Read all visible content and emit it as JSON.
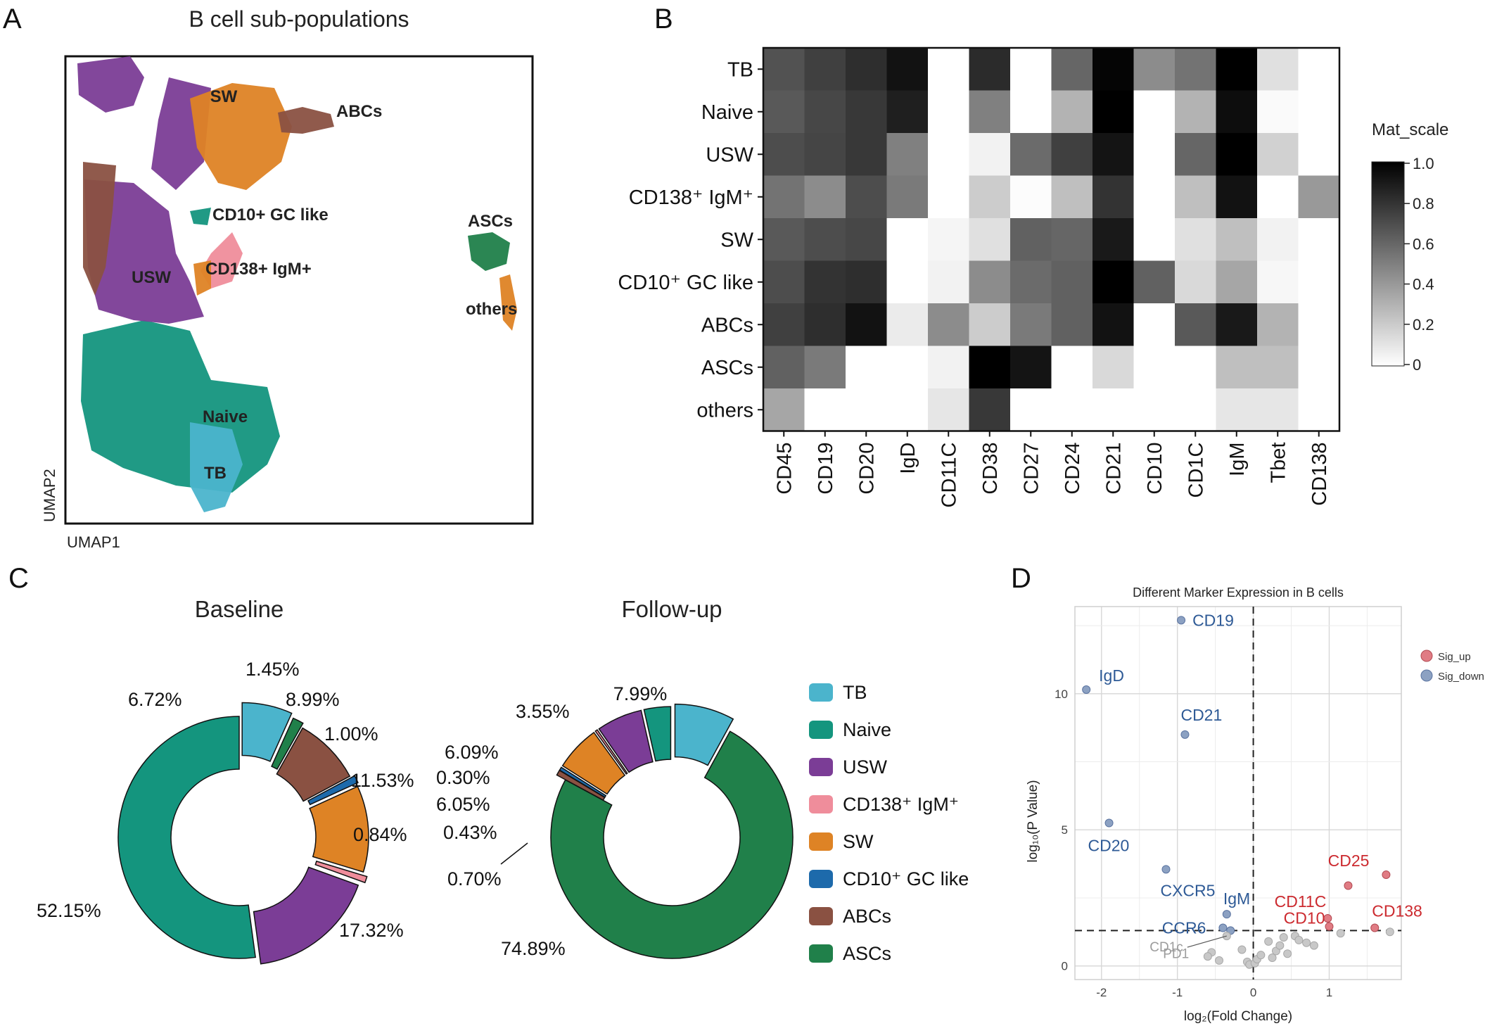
{
  "panels": {
    "A": {
      "letter": "A",
      "title": "B cell sub-populations",
      "xlabel": "UMAP1",
      "ylabel": "UMAP2",
      "cluster_labels": [
        "SW",
        "ABCs",
        "CD10+ GC like",
        "USW",
        "CD138+ IgM+",
        "Naive",
        "TB",
        "ASCs",
        "others"
      ]
    },
    "B": {
      "letter": "B"
    },
    "C": {
      "letter": "C"
    },
    "D": {
      "letter": "D"
    }
  },
  "colors": {
    "TB": "#4bb4cc",
    "Naive": "#14957e",
    "USW": "#7b3d96",
    "CD138": "#ef8d9b",
    "SW": "#de8325",
    "CD10": "#1d6aab",
    "ABCs": "#8a5142",
    "ASCs": "#20804a",
    "sig_up": "#cc2a2f",
    "sig_down": "#2e5a96",
    "ns": "#9c9c9c",
    "pt_up": "#e07c84",
    "pt_down": "#8ca1c2",
    "pt_ns": "#c8c8c8"
  },
  "chart_data": [
    {
      "panel": "B",
      "type": "heatmap",
      "rows": [
        "TB",
        "Naive",
        "USW",
        "CD138⁺ IgM⁺",
        "SW",
        "CD10⁺ GC like",
        "ABCs",
        "ASCs",
        "others"
      ],
      "columns": [
        "CD45",
        "CD19",
        "CD20",
        "IgD",
        "CD11C",
        "CD38",
        "CD27",
        "CD24",
        "CD21",
        "CD10",
        "CD1C",
        "IgM",
        "Tbet",
        "CD138"
      ],
      "values": [
        [
          0.68,
          0.75,
          0.82,
          0.93,
          0.0,
          0.83,
          0.0,
          0.6,
          0.98,
          0.45,
          0.55,
          1.0,
          0.12,
          0.0
        ],
        [
          0.65,
          0.72,
          0.78,
          0.88,
          0.0,
          0.5,
          0.0,
          0.3,
          1.0,
          0.0,
          0.3,
          0.95,
          0.02,
          0.0
        ],
        [
          0.7,
          0.73,
          0.78,
          0.5,
          0.0,
          0.05,
          0.58,
          0.75,
          0.92,
          0.0,
          0.6,
          1.0,
          0.18,
          0.0
        ],
        [
          0.55,
          0.45,
          0.7,
          0.52,
          0.0,
          0.2,
          0.01,
          0.25,
          0.8,
          0.0,
          0.25,
          0.93,
          0.0,
          0.4
        ],
        [
          0.65,
          0.7,
          0.72,
          0.0,
          0.04,
          0.12,
          0.62,
          0.6,
          0.9,
          0.0,
          0.12,
          0.25,
          0.05,
          0.0
        ],
        [
          0.7,
          0.8,
          0.82,
          0.0,
          0.05,
          0.45,
          0.58,
          0.62,
          1.0,
          0.62,
          0.15,
          0.35,
          0.03,
          0.0
        ],
        [
          0.75,
          0.82,
          0.93,
          0.08,
          0.45,
          0.2,
          0.52,
          0.62,
          0.93,
          0.0,
          0.65,
          0.9,
          0.3,
          0.0
        ],
        [
          0.62,
          0.52,
          0.0,
          0.0,
          0.05,
          1.0,
          0.92,
          0.0,
          0.15,
          0.0,
          0.0,
          0.25,
          0.25,
          0.0
        ],
        [
          0.35,
          0.0,
          0.0,
          0.0,
          0.1,
          0.78,
          0.0,
          0.0,
          0.0,
          0.0,
          0.0,
          0.1,
          0.1,
          0.0
        ]
      ],
      "legend_title": "Mat_scale",
      "scale_ticks": [
        "1.0",
        "0.8",
        "0.6",
        "0.4",
        "0.2",
        "0"
      ],
      "range": [
        0,
        1
      ]
    },
    {
      "panel": "C",
      "type": "pie",
      "title": "Baseline",
      "slices": [
        {
          "category": "TB",
          "value": 6.72,
          "label": "6.72%"
        },
        {
          "category": "ASCs",
          "value": 1.45,
          "label": "1.45%"
        },
        {
          "category": "ABCs",
          "value": 8.99,
          "label": "8.99%"
        },
        {
          "category": "CD10",
          "value": 1.0,
          "label": "1.00%"
        },
        {
          "category": "SW",
          "value": 11.53,
          "label": "11.53%"
        },
        {
          "category": "CD138",
          "value": 0.84,
          "label": "0.84%"
        },
        {
          "category": "USW",
          "value": 17.32,
          "label": "17.32%"
        },
        {
          "category": "Naive",
          "value": 52.15,
          "label": "52.15%"
        }
      ]
    },
    {
      "panel": "C",
      "type": "pie",
      "title": "Follow-up",
      "slices": [
        {
          "category": "TB",
          "value": 7.99,
          "label": "7.99%"
        },
        {
          "category": "ASCs",
          "value": 74.89,
          "label": "74.89%"
        },
        {
          "category": "ABCs",
          "value": 0.7,
          "label": "0.70%"
        },
        {
          "category": "CD10",
          "value": 0.43,
          "label": "0.43%"
        },
        {
          "category": "SW",
          "value": 6.05,
          "label": "6.05%"
        },
        {
          "category": "CD138",
          "value": 0.3,
          "label": "0.30%"
        },
        {
          "category": "USW",
          "value": 6.09,
          "label": "6.09%"
        },
        {
          "category": "Naive",
          "value": 3.55,
          "label": "3.55%"
        }
      ],
      "legend": [
        {
          "category": "TB",
          "label": "TB"
        },
        {
          "category": "Naive",
          "label": "Naive"
        },
        {
          "category": "USW",
          "label": "USW"
        },
        {
          "category": "CD138",
          "label": "CD138⁺ IgM⁺"
        },
        {
          "category": "SW",
          "label": "SW"
        },
        {
          "category": "CD10",
          "label": "CD10⁺ GC like"
        },
        {
          "category": "ABCs",
          "label": "ABCs"
        },
        {
          "category": "ASCs",
          "label": "ASCs"
        }
      ]
    },
    {
      "panel": "D",
      "type": "scatter",
      "title": "Different Marker Expression in B cells",
      "xlabel": "log₂(Fold Change)",
      "ylabel": "log₁₀(P Value)",
      "xlim": [
        -2.35,
        1.95
      ],
      "ylim": [
        -0.5,
        13.2
      ],
      "xticks": [
        -2,
        -1,
        0,
        1
      ],
      "yticks": [
        0,
        5,
        10
      ],
      "threshold_y": 1.3,
      "threshold_x": 0,
      "grid": true,
      "legend_position": "top-right",
      "legend": [
        {
          "group": "up",
          "label": "Sig_up"
        },
        {
          "group": "down",
          "label": "Sig_down"
        }
      ],
      "points": [
        {
          "x": -0.95,
          "y": 12.7,
          "group": "down",
          "label": "CD19"
        },
        {
          "x": -2.2,
          "y": 10.15,
          "group": "down",
          "label": "IgD"
        },
        {
          "x": -0.9,
          "y": 8.5,
          "group": "down",
          "label": "CD21"
        },
        {
          "x": -1.9,
          "y": 5.25,
          "group": "down",
          "label": "CD20"
        },
        {
          "x": -1.15,
          "y": 3.55,
          "group": "down",
          "label": "CXCR5"
        },
        {
          "x": -0.35,
          "y": 1.9,
          "group": "down",
          "label": "IgM"
        },
        {
          "x": -0.4,
          "y": 1.4,
          "group": "down",
          "label": "CCR6"
        },
        {
          "x": -0.3,
          "y": 1.3,
          "group": "down",
          "label": ""
        },
        {
          "x": 1.75,
          "y": 3.35,
          "group": "up",
          "label": "CD25"
        },
        {
          "x": 1.25,
          "y": 2.95,
          "group": "up",
          "label": ""
        },
        {
          "x": 0.98,
          "y": 1.75,
          "group": "up",
          "label": "CD11C"
        },
        {
          "x": 1.0,
          "y": 1.45,
          "group": "up",
          "label": "CD10"
        },
        {
          "x": 1.6,
          "y": 1.4,
          "group": "up",
          "label": "CD138"
        },
        {
          "x": -0.35,
          "y": 1.1,
          "group": "ns",
          "label": "CD1c"
        },
        {
          "x": -0.55,
          "y": 0.5,
          "group": "ns",
          "label": "PD1"
        },
        {
          "x": -0.6,
          "y": 0.35,
          "group": "ns",
          "label": ""
        },
        {
          "x": -0.45,
          "y": 0.2,
          "group": "ns",
          "label": ""
        },
        {
          "x": -0.15,
          "y": 0.6,
          "group": "ns",
          "label": ""
        },
        {
          "x": -0.08,
          "y": 0.15,
          "group": "ns",
          "label": ""
        },
        {
          "x": -0.05,
          "y": 0.05,
          "group": "ns",
          "label": ""
        },
        {
          "x": 0.02,
          "y": 0.1,
          "group": "ns",
          "label": ""
        },
        {
          "x": 0.05,
          "y": 0.25,
          "group": "ns",
          "label": ""
        },
        {
          "x": 0.1,
          "y": 0.4,
          "group": "ns",
          "label": ""
        },
        {
          "x": 0.2,
          "y": 0.9,
          "group": "ns",
          "label": ""
        },
        {
          "x": 0.25,
          "y": 0.3,
          "group": "ns",
          "label": ""
        },
        {
          "x": 0.3,
          "y": 0.55,
          "group": "ns",
          "label": ""
        },
        {
          "x": 0.35,
          "y": 0.75,
          "group": "ns",
          "label": ""
        },
        {
          "x": 0.4,
          "y": 1.05,
          "group": "ns",
          "label": ""
        },
        {
          "x": 0.45,
          "y": 0.45,
          "group": "ns",
          "label": ""
        },
        {
          "x": 0.55,
          "y": 1.1,
          "group": "ns",
          "label": ""
        },
        {
          "x": 0.7,
          "y": 0.85,
          "group": "ns",
          "label": ""
        },
        {
          "x": 0.8,
          "y": 0.75,
          "group": "ns",
          "label": ""
        },
        {
          "x": 0.6,
          "y": 0.95,
          "group": "ns",
          "label": ""
        },
        {
          "x": 1.15,
          "y": 1.2,
          "group": "ns",
          "label": ""
        },
        {
          "x": 1.8,
          "y": 1.25,
          "group": "ns",
          "label": ""
        }
      ]
    }
  ]
}
